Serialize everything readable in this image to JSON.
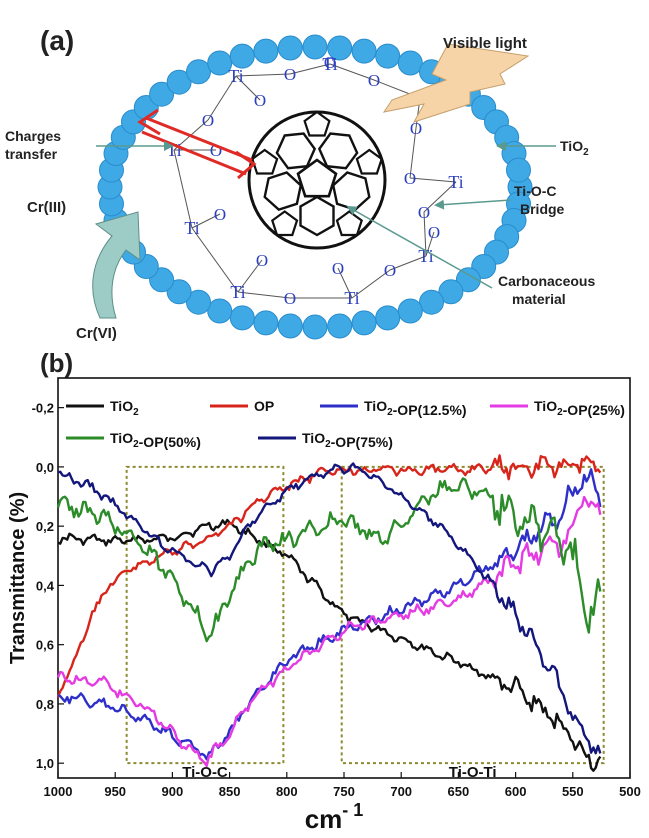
{
  "panel_a": {
    "label": "(a)",
    "visible_light": "Visible light",
    "charges_transfer_1": "Charges",
    "charges_transfer_2": "transfer",
    "tio2_main": "TiO",
    "tio2_sub": "2",
    "bridge_1": "Ti-O-C",
    "bridge_2": "Bridge",
    "carbon_1": "Carbonaceous",
    "carbon_2": "material",
    "cr3": "Cr(III)",
    "cr6": "Cr(VI)",
    "ti_atom": "Ti",
    "o_atom": "O"
  },
  "panel_b": {
    "label": "(b)",
    "box1_label": "Ti-O-C",
    "box2_label": "Ti-O-Ti"
  },
  "colors": {
    "bead": "#3fa9e6",
    "tio2_black": "#111111",
    "op_red": "#d8251c",
    "blue_12_5": "#2e2fc8",
    "magenta_25": "#e43be3",
    "green_50": "#2d8c2a",
    "navy_75": "#13167a",
    "box_dashed": "#8c8a30",
    "arrow_teal": "#6aaea0"
  },
  "chart_data": {
    "type": "line",
    "title": "",
    "xlabel_main": "cm",
    "xlabel_sup": "- 1",
    "ylabel": "Transmittance (%)",
    "x_reversed": true,
    "xlim": [
      1000,
      500
    ],
    "ylim_inverted": true,
    "ylim": [
      -0.3,
      1.05
    ],
    "x_ticks": [
      "1000",
      "950",
      "900",
      "850",
      "800",
      "750",
      "700",
      "650",
      "600",
      "550",
      "500"
    ],
    "y_ticks": [
      "-0,2",
      "0,0",
      "0,2",
      "0,4",
      "0,6",
      "0,8",
      "1,0"
    ],
    "x_tick_values": [
      1000,
      950,
      900,
      850,
      800,
      750,
      700,
      650,
      600,
      550,
      500
    ],
    "y_tick_values": [
      -0.2,
      0.0,
      0.2,
      0.4,
      0.6,
      0.8,
      1.0
    ],
    "regions": [
      {
        "name": "Ti-O-C",
        "x_range": [
          940,
          803
        ],
        "y_range": [
          0.0,
          1.0
        ]
      },
      {
        "name": "Ti-O-Ti",
        "x_range": [
          752,
          523
        ],
        "y_range": [
          0.0,
          1.0
        ]
      }
    ],
    "legend": [
      {
        "parts": [
          {
            "t": "TiO"
          },
          {
            "t": "2",
            "sub": true
          }
        ]
      },
      {
        "parts": [
          {
            "t": "OP"
          }
        ]
      },
      {
        "parts": [
          {
            "t": "TiO"
          },
          {
            "t": "2",
            "sub": true
          },
          {
            "t": "-OP(12.5%)"
          }
        ]
      },
      {
        "parts": [
          {
            "t": "TiO"
          },
          {
            "t": "2",
            "sub": true
          },
          {
            "t": "-OP(25%)"
          }
        ]
      },
      {
        "parts": [
          {
            "t": "TiO"
          },
          {
            "t": "2",
            "sub": true
          },
          {
            "t": "-OP(50%)"
          }
        ]
      },
      {
        "parts": [
          {
            "t": "TiO"
          },
          {
            "t": "2",
            "sub": true
          },
          {
            "t": "-OP(75%)"
          }
        ]
      }
    ],
    "series": [
      {
        "name": "TiO2",
        "color": "#111111",
        "noise": 0.01,
        "x": [
          1000,
          950,
          900,
          870,
          850,
          800,
          750,
          700,
          650,
          600,
          560,
          550,
          540,
          530,
          525
        ],
        "y": [
          0.24,
          0.25,
          0.24,
          0.2,
          0.19,
          0.3,
          0.5,
          0.58,
          0.66,
          0.75,
          0.87,
          0.92,
          0.97,
          1.0,
          0.99
        ]
      },
      {
        "name": "OP",
        "color": "#d8251c",
        "noise": 0.01,
        "x": [
          1000,
          985,
          970,
          955,
          940,
          910,
          880,
          850,
          820,
          790,
          770,
          750,
          700,
          650,
          600,
          560,
          540,
          530,
          525
        ],
        "y": [
          0.77,
          0.65,
          0.5,
          0.4,
          0.35,
          0.3,
          0.26,
          0.2,
          0.1,
          0.05,
          0.02,
          0.01,
          0.01,
          0.01,
          0.0,
          0.0,
          -0.01,
          0.0,
          0.01
        ]
      },
      {
        "name": "TiO2-OP(12.5%)",
        "color": "#2e2fc8",
        "noise": 0.012,
        "x": [
          1000,
          960,
          920,
          880,
          870,
          850,
          830,
          800,
          750,
          700,
          650,
          600,
          560,
          550,
          540,
          530,
          525
        ],
        "y": [
          0.77,
          0.8,
          0.86,
          0.95,
          0.98,
          0.9,
          0.78,
          0.65,
          0.55,
          0.48,
          0.4,
          0.28,
          0.15,
          0.08,
          0.03,
          0.08,
          0.12
        ]
      },
      {
        "name": "TiO2-OP(25%)",
        "color": "#e43be3",
        "noise": 0.012,
        "x": [
          1000,
          960,
          920,
          880,
          870,
          850,
          830,
          800,
          750,
          700,
          650,
          600,
          560,
          550,
          540,
          530,
          525
        ],
        "y": [
          0.71,
          0.73,
          0.82,
          0.97,
          0.99,
          0.9,
          0.78,
          0.68,
          0.55,
          0.5,
          0.45,
          0.33,
          0.25,
          0.2,
          0.1,
          0.15,
          0.15
        ]
      },
      {
        "name": "TiO2-OP(50%)",
        "color": "#2d8c2a",
        "noise": 0.02,
        "x": [
          1000,
          960,
          930,
          900,
          880,
          870,
          860,
          840,
          820,
          800,
          770,
          750,
          720,
          700,
          680,
          650,
          620,
          600,
          580,
          560,
          545,
          535,
          530,
          525
        ],
        "y": [
          0.12,
          0.17,
          0.25,
          0.37,
          0.5,
          0.55,
          0.52,
          0.36,
          0.26,
          0.25,
          0.2,
          0.18,
          0.24,
          0.2,
          0.1,
          0.06,
          0.1,
          0.15,
          0.2,
          0.25,
          0.35,
          0.5,
          0.45,
          0.42
        ]
      },
      {
        "name": "TiO2-OP(75%)",
        "color": "#13167a",
        "noise": 0.01,
        "x": [
          1000,
          970,
          940,
          910,
          880,
          865,
          850,
          830,
          800,
          780,
          760,
          745,
          730,
          700,
          660,
          620,
          590,
          570,
          555,
          545,
          535,
          530,
          525
        ],
        "y": [
          0.02,
          0.07,
          0.16,
          0.26,
          0.33,
          0.35,
          0.3,
          0.18,
          0.08,
          0.04,
          0.01,
          0.0,
          0.02,
          0.1,
          0.22,
          0.4,
          0.55,
          0.68,
          0.8,
          0.88,
          0.93,
          0.95,
          0.97
        ]
      }
    ]
  }
}
